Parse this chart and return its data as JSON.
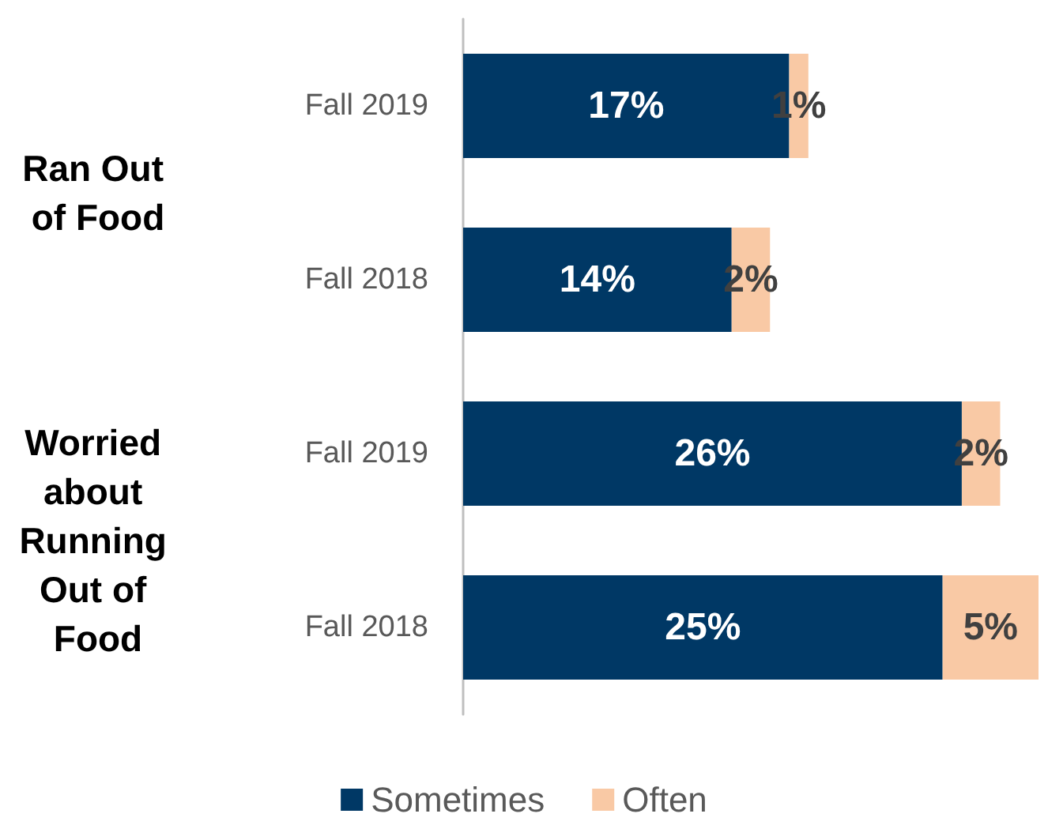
{
  "chart_data": {
    "type": "bar",
    "orientation": "horizontal",
    "stacked": true,
    "categories": [
      "Fall 2019",
      "Fall 2018",
      "Fall 2019",
      "Fall 2018"
    ],
    "series": [
      {
        "name": "Sometimes",
        "color": "#003865",
        "values": [
          17,
          14,
          26,
          25
        ],
        "value_labels": [
          "17%",
          "14%",
          "26%",
          "25%"
        ]
      },
      {
        "name": "Often",
        "color": "#f9c9a5",
        "values": [
          1,
          2,
          2,
          5
        ],
        "value_labels": [
          "1%",
          "2%",
          "2%",
          "5%"
        ]
      }
    ],
    "annotations": [
      "Ran Out of Food",
      "Worried about Running Out of Food"
    ],
    "legend": "bottom"
  }
}
